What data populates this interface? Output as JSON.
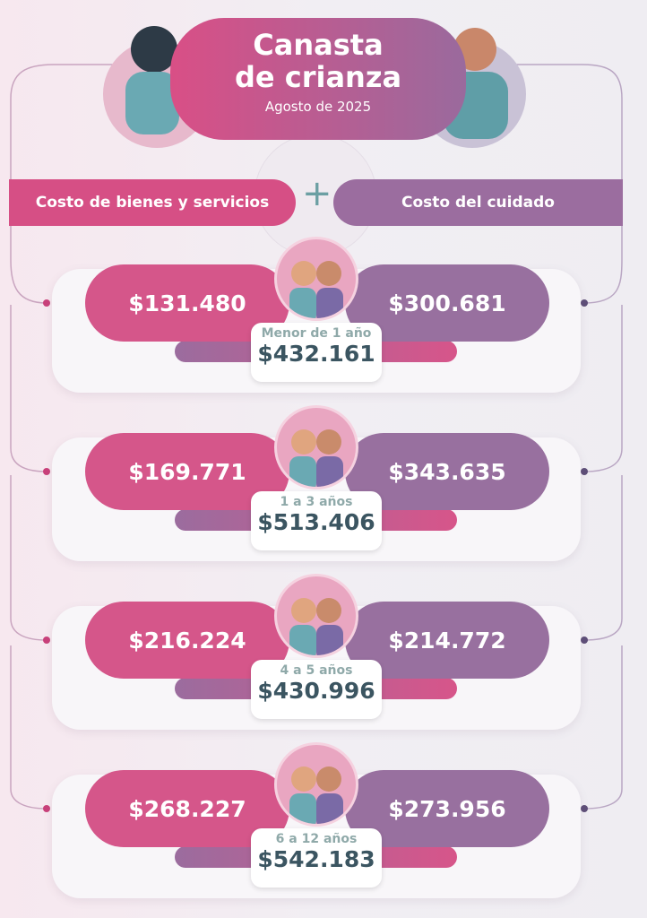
{
  "header": {
    "title_line1": "Canasta",
    "title_line2": "de crianza",
    "subtitle": "Agosto de 2025"
  },
  "columns": {
    "left": "Costo de bienes y servicios",
    "right": "Costo del cuidado"
  },
  "rows": [
    {
      "age": "Menor de 1 año",
      "goods": "$131.480",
      "care": "$300.681",
      "total": "$432.161"
    },
    {
      "age": "1 a 3 años",
      "goods": "$169.771",
      "care": "$343.635",
      "total": "$513.406"
    },
    {
      "age": "4 a 5 años",
      "goods": "$216.224",
      "care": "$214.772",
      "total": "$430.996"
    },
    {
      "age": "6 a 12 años",
      "goods": "$268.227",
      "care": "$273.956",
      "total": "$542.183"
    }
  ]
}
